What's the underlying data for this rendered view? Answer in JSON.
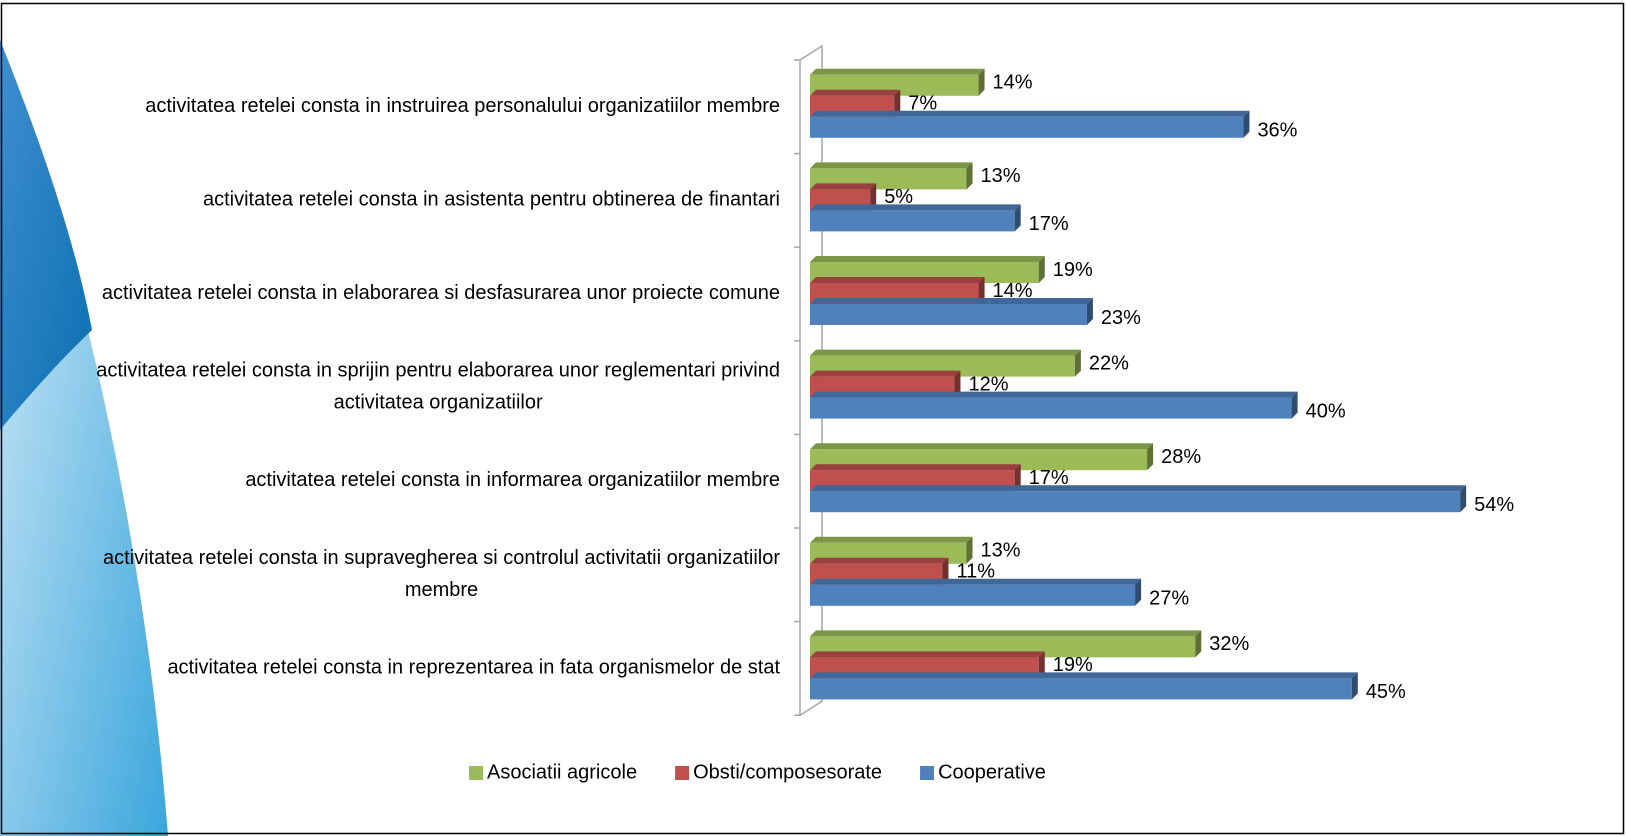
{
  "chart_data": {
    "type": "bar3d_horizontal",
    "categories": [
      "activitatea retelei consta in instruirea personalului organizatiilor membre",
      "activitatea retelei consta in asistenta pentru obtinerea de finantari",
      "activitatea retelei consta in elaborarea si desfasurarea unor proiecte comune",
      "activitatea retelei consta in sprijin pentru elaborarea unor reglementari privind activitatea organizatiilor",
      "activitatea retelei consta in informarea organizatiilor membre",
      "activitatea retelei consta in supravegherea si controlul activitatii organizatiilor membre",
      "activitatea retelei consta in reprezentarea in fata organismelor de stat"
    ],
    "series": [
      {
        "name": "Asociatii agricole",
        "color": "#9bbb59",
        "values": [
          14,
          13,
          19,
          22,
          28,
          13,
          32
        ],
        "value_labels": [
          "14%",
          "13%",
          "19%",
          "22%",
          "28%",
          "13%",
          "32%"
        ]
      },
      {
        "name": "Obsti/composesorate",
        "color": "#c0504d",
        "values": [
          7,
          5,
          14,
          12,
          17,
          11,
          19
        ],
        "value_labels": [
          "7%",
          "5%",
          "14%",
          "12%",
          "17%",
          "11%",
          "19%"
        ]
      },
      {
        "name": "Cooperative",
        "color": "#4f81bd",
        "values": [
          36,
          17,
          23,
          40,
          54,
          27,
          45
        ],
        "value_labels": [
          "36%",
          "17%",
          "23%",
          "40%",
          "54%",
          "27%",
          "45%"
        ]
      }
    ],
    "legend": "bottom"
  }
}
